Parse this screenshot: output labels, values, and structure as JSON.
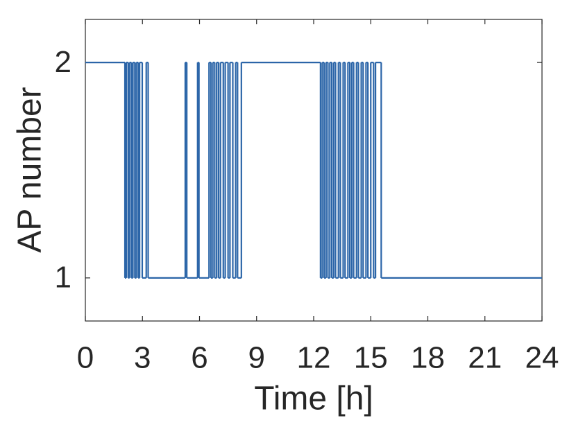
{
  "chart_data": {
    "type": "line",
    "drawstyle": "steps-post",
    "xlabel": "Time [h]",
    "ylabel": "AP number",
    "xlim": [
      0,
      24
    ],
    "xticks": [
      0,
      3,
      6,
      9,
      12,
      15,
      18,
      21,
      24
    ],
    "ylim": [
      0.8,
      2.2
    ],
    "yticks": [
      1,
      2
    ],
    "grid": false,
    "series": [
      {
        "color": "#2b65a8",
        "x": [
          0,
          2.08,
          2.15,
          2.25,
          2.32,
          2.42,
          2.5,
          2.6,
          2.68,
          2.78,
          2.85,
          2.99,
          3.2,
          3.3,
          5.25,
          5.33,
          5.9,
          5.97,
          6.5,
          6.6,
          6.7,
          6.8,
          6.9,
          7.0,
          7.1,
          7.25,
          7.35,
          7.5,
          7.6,
          7.75,
          7.9,
          8.0,
          8.2,
          12.36,
          12.45,
          12.55,
          12.65,
          12.75,
          12.85,
          12.95,
          13.05,
          13.15,
          13.3,
          13.4,
          13.55,
          13.65,
          13.8,
          13.9,
          14.0,
          14.1,
          14.25,
          14.35,
          14.5,
          14.6,
          14.75,
          14.85,
          15.0,
          15.15,
          15.25,
          15.55,
          24
        ],
        "values": [
          2,
          1,
          2,
          1,
          2,
          1,
          2,
          1,
          2,
          1,
          2,
          1,
          2,
          1,
          2,
          1,
          2,
          1,
          2,
          1,
          2,
          1,
          2,
          1,
          2,
          1,
          2,
          1,
          2,
          1,
          2,
          1,
          2,
          1,
          2,
          1,
          2,
          1,
          2,
          1,
          2,
          1,
          2,
          1,
          2,
          1,
          2,
          1,
          2,
          1,
          2,
          1,
          2,
          1,
          2,
          1,
          2,
          1,
          2,
          1,
          1
        ]
      }
    ]
  }
}
